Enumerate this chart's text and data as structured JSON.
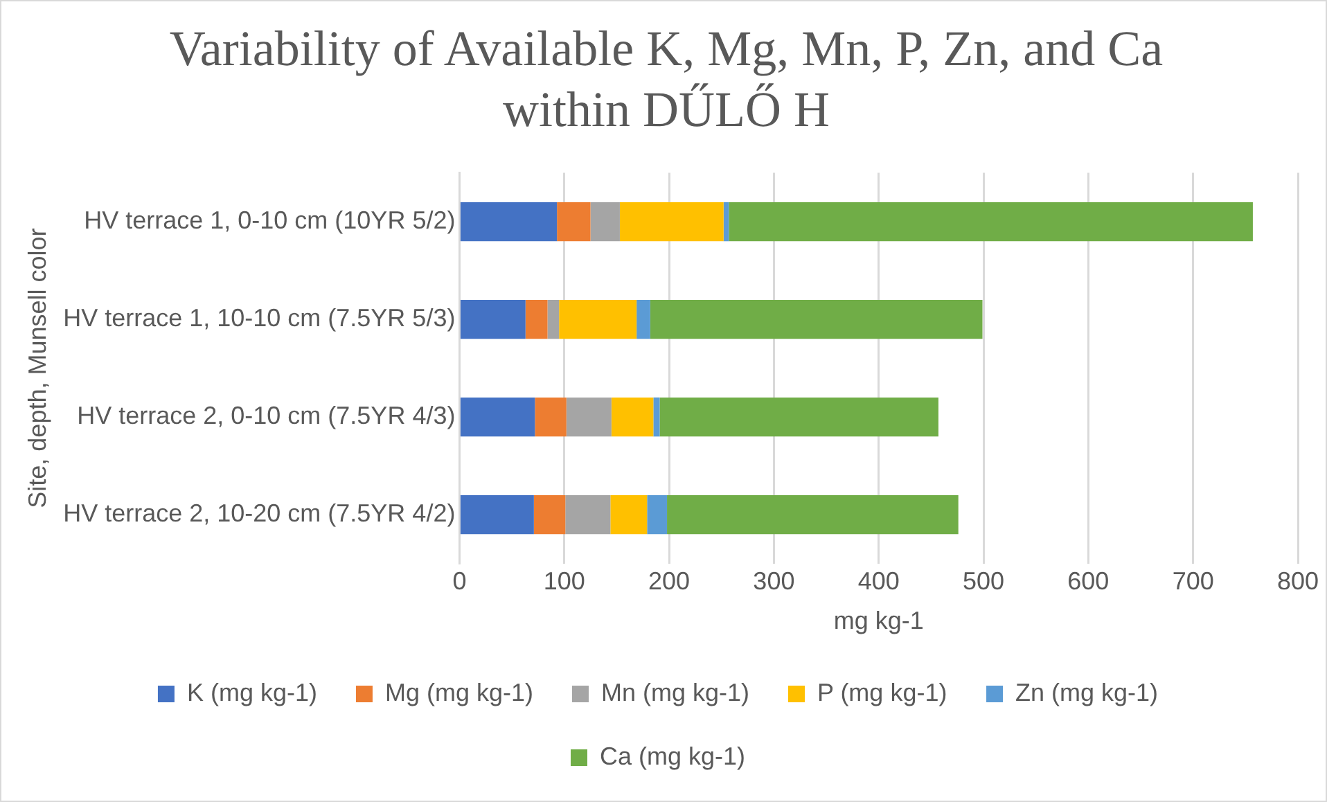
{
  "chart_data": {
    "type": "bar",
    "orientation": "horizontal",
    "stacked": true,
    "title": "Variability of Available K, Mg, Mn, P, Zn, and Ca within DŰLŐ H",
    "xlabel": "mg kg-1",
    "ylabel": "Site, depth, Munsell color",
    "categories": [
      "HV terrace 1, 0-10 cm (10YR 5/2)",
      "HV terrace 1, 10-10 cm (7.5YR 5/3)",
      "HV terrace 2, 0-10 cm (7.5YR 4/3)",
      "HV terrace 2, 10-20 cm (7.5YR 4/2)"
    ],
    "series": [
      {
        "name": "K (mg kg-1)",
        "color": "#4472c4",
        "values": [
          93,
          63,
          72,
          71
        ]
      },
      {
        "name": "Mg (mg kg-1)",
        "color": "#ed7d31",
        "values": [
          32,
          21,
          30,
          30
        ]
      },
      {
        "name": "Mn (mg kg-1)",
        "color": "#a5a5a5",
        "values": [
          28,
          11,
          43,
          43
        ]
      },
      {
        "name": "P (mg kg-1)",
        "color": "#ffc000",
        "values": [
          99,
          74,
          40,
          35
        ]
      },
      {
        "name": "Zn (mg kg-1)",
        "color": "#5b9bd5",
        "values": [
          5,
          13,
          6,
          19
        ]
      },
      {
        "name": "Ca (mg kg-1)",
        "color": "#70ad47",
        "values": [
          500,
          317,
          266,
          278
        ]
      }
    ],
    "xlim": [
      0,
      800
    ],
    "xticks": [
      0,
      100,
      200,
      300,
      400,
      500,
      600,
      700,
      800
    ],
    "grid": "x",
    "legend": "bottom"
  }
}
